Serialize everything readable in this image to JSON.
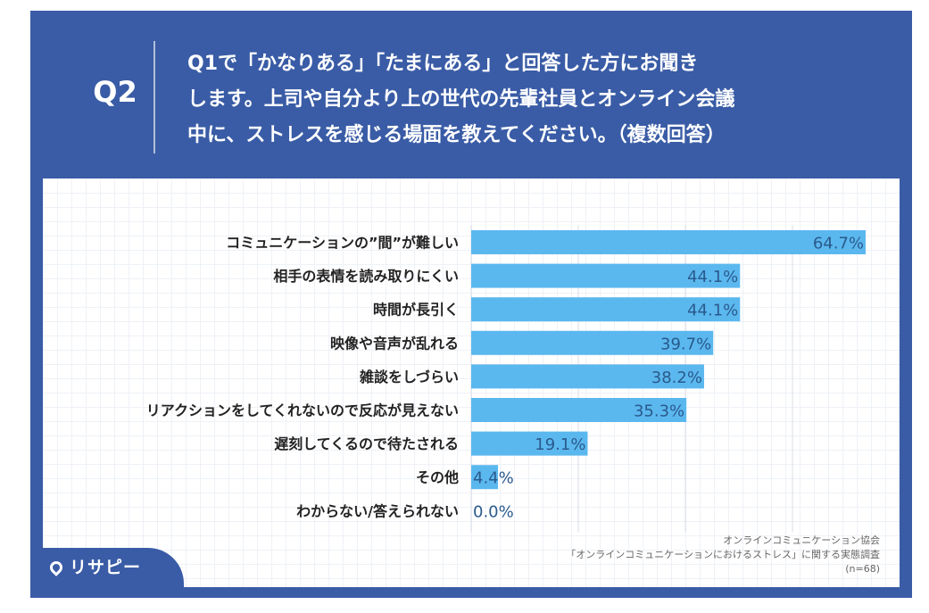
{
  "header": {
    "question_no": "Q2",
    "question_lines": [
      "Q1で「かなりある」「たまにある」と回答した方にお聞き",
      "します。上司や自分より上の世代の先輩社員とオンライン会議",
      "中に、ストレスを感じる場面を教えてください。（複数回答）"
    ]
  },
  "chart_data": {
    "type": "bar",
    "orientation": "horizontal",
    "title": "",
    "categories": [
      "コミュニケーションの”間”が難しい",
      "相手の表情を読み取りにくい",
      "時間が長引く",
      "映像や音声が乱れる",
      "雑談をしづらい",
      "リアクションをしてくれないので反応が見えない",
      "遅刻してくるので待たされる",
      "その他",
      "わからない/答えられない"
    ],
    "values": [
      64.7,
      44.1,
      44.1,
      39.7,
      38.2,
      35.3,
      19.1,
      4.4,
      0.0
    ],
    "value_labels": [
      "64.7%",
      "44.1%",
      "44.1%",
      "39.7%",
      "38.2%",
      "35.3%",
      "19.1%",
      "4.4%",
      "0.0%"
    ],
    "xlim": [
      0,
      70
    ],
    "grid": true,
    "bar_color": "#5bb8ef"
  },
  "source": {
    "line1": "オンラインコミュニケーション協会",
    "line2": "「オンラインコミュニケーションにおけるストレス」に関する実態調査",
    "line3": "(n=68)"
  },
  "logo": {
    "text": "リサピー"
  },
  "colors": {
    "frame": "#3a5ca6",
    "bar": "#5bb8ef",
    "value_text": "#2a5a8c"
  }
}
